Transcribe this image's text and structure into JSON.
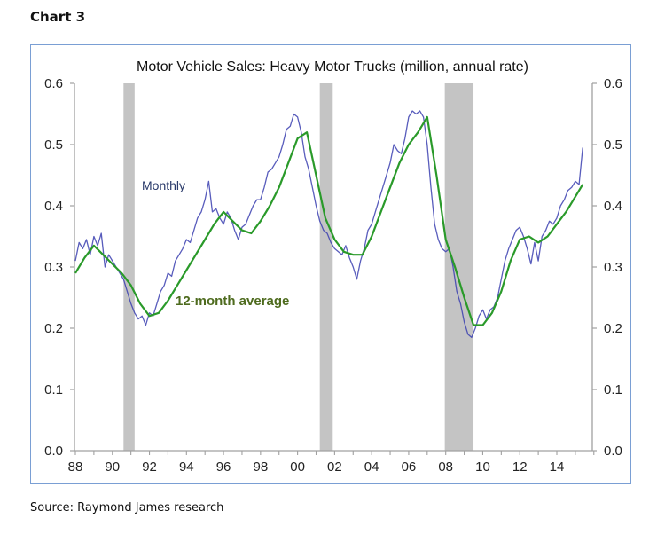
{
  "header": {
    "chart_label": "Chart 3"
  },
  "footer": {
    "source": "Source: Raymond James research"
  },
  "chart_data": {
    "type": "line",
    "title": "Motor Vehicle Sales: Heavy Motor Trucks (million, annual rate)",
    "xlabel": "",
    "ylabel": "",
    "xlim": [
      1988,
      2016
    ],
    "ylim": [
      0.0,
      0.6
    ],
    "x_ticks": [
      "88",
      "90",
      "92",
      "94",
      "96",
      "98",
      "00",
      "02",
      "04",
      "06",
      "08",
      "10",
      "12",
      "14"
    ],
    "y_ticks_left": [
      "0.0",
      "0.1",
      "0.2",
      "0.3",
      "0.4",
      "0.5",
      "0.6"
    ],
    "y_ticks_right": [
      "0.0",
      "0.1",
      "0.2",
      "0.3",
      "0.4",
      "0.5",
      "0.6"
    ],
    "grid": false,
    "recessions": [
      {
        "start": 1990.6,
        "end": 1991.2
      },
      {
        "start": 2001.2,
        "end": 2001.9
      },
      {
        "start": 2007.95,
        "end": 2009.5
      }
    ],
    "annotations": [
      {
        "text": "Monthly",
        "series": "Monthly"
      },
      {
        "text": "12-month average",
        "series": "12-month average"
      }
    ],
    "series": [
      {
        "name": "Monthly",
        "color": "#3b3fb0",
        "x": [
          1988.0,
          1988.2,
          1988.4,
          1988.6,
          1988.8,
          1989.0,
          1989.2,
          1989.4,
          1989.6,
          1989.8,
          1990.0,
          1990.2,
          1990.4,
          1990.6,
          1990.8,
          1991.0,
          1991.2,
          1991.4,
          1991.6,
          1991.8,
          1992.0,
          1992.2,
          1992.4,
          1992.6,
          1992.8,
          1993.0,
          1993.2,
          1993.4,
          1993.6,
          1993.8,
          1994.0,
          1994.2,
          1994.4,
          1994.6,
          1994.8,
          1995.0,
          1995.2,
          1995.4,
          1995.6,
          1995.8,
          1996.0,
          1996.2,
          1996.4,
          1996.6,
          1996.8,
          1997.0,
          1997.2,
          1997.4,
          1997.6,
          1997.8,
          1998.0,
          1998.2,
          1998.4,
          1998.6,
          1998.8,
          1999.0,
          1999.2,
          1999.4,
          1999.6,
          1999.8,
          2000.0,
          2000.2,
          2000.4,
          2000.6,
          2000.8,
          2001.0,
          2001.2,
          2001.4,
          2001.6,
          2001.8,
          2002.0,
          2002.2,
          2002.4,
          2002.6,
          2002.8,
          2003.0,
          2003.2,
          2003.4,
          2003.6,
          2003.8,
          2004.0,
          2004.2,
          2004.4,
          2004.6,
          2004.8,
          2005.0,
          2005.2,
          2005.4,
          2005.6,
          2005.8,
          2006.0,
          2006.2,
          2006.4,
          2006.6,
          2006.8,
          2007.0,
          2007.2,
          2007.4,
          2007.6,
          2007.8,
          2008.0,
          2008.2,
          2008.4,
          2008.6,
          2008.8,
          2009.0,
          2009.2,
          2009.4,
          2009.6,
          2009.8,
          2010.0,
          2010.2,
          2010.4,
          2010.6,
          2010.8,
          2011.0,
          2011.2,
          2011.4,
          2011.6,
          2011.8,
          2012.0,
          2012.2,
          2012.4,
          2012.6,
          2012.8,
          2013.0,
          2013.2,
          2013.4,
          2013.6,
          2013.8,
          2014.0,
          2014.2,
          2014.4,
          2014.6,
          2014.8,
          2015.0,
          2015.2,
          2015.4
        ],
        "values": [
          0.31,
          0.34,
          0.33,
          0.345,
          0.32,
          0.35,
          0.335,
          0.355,
          0.3,
          0.32,
          0.31,
          0.3,
          0.29,
          0.28,
          0.26,
          0.24,
          0.225,
          0.215,
          0.22,
          0.205,
          0.225,
          0.22,
          0.24,
          0.26,
          0.27,
          0.29,
          0.285,
          0.31,
          0.32,
          0.33,
          0.345,
          0.34,
          0.36,
          0.38,
          0.39,
          0.41,
          0.44,
          0.39,
          0.395,
          0.38,
          0.37,
          0.39,
          0.38,
          0.36,
          0.345,
          0.365,
          0.37,
          0.385,
          0.4,
          0.41,
          0.41,
          0.43,
          0.455,
          0.46,
          0.47,
          0.48,
          0.5,
          0.525,
          0.53,
          0.55,
          0.545,
          0.52,
          0.48,
          0.46,
          0.43,
          0.4,
          0.375,
          0.36,
          0.355,
          0.34,
          0.33,
          0.325,
          0.32,
          0.335,
          0.315,
          0.3,
          0.28,
          0.31,
          0.33,
          0.36,
          0.37,
          0.39,
          0.41,
          0.43,
          0.45,
          0.47,
          0.5,
          0.49,
          0.485,
          0.51,
          0.545,
          0.555,
          0.55,
          0.555,
          0.545,
          0.5,
          0.43,
          0.37,
          0.345,
          0.33,
          0.325,
          0.33,
          0.3,
          0.26,
          0.24,
          0.21,
          0.19,
          0.185,
          0.2,
          0.22,
          0.23,
          0.215,
          0.23,
          0.235,
          0.25,
          0.28,
          0.31,
          0.33,
          0.345,
          0.36,
          0.365,
          0.35,
          0.33,
          0.305,
          0.34,
          0.31,
          0.35,
          0.36,
          0.375,
          0.37,
          0.38,
          0.4,
          0.41,
          0.425,
          0.43,
          0.44,
          0.435,
          0.495
        ]
      },
      {
        "name": "12-month average",
        "color": "#2a9a2a",
        "x": [
          1988.0,
          1988.5,
          1989.0,
          1989.5,
          1990.0,
          1990.5,
          1991.0,
          1991.5,
          1992.0,
          1992.5,
          1993.0,
          1993.5,
          1994.0,
          1994.5,
          1995.0,
          1995.5,
          1996.0,
          1996.5,
          1997.0,
          1997.5,
          1998.0,
          1998.5,
          1999.0,
          1999.5,
          2000.0,
          2000.5,
          2001.0,
          2001.5,
          2002.0,
          2002.5,
          2003.0,
          2003.5,
          2004.0,
          2004.5,
          2005.0,
          2005.5,
          2006.0,
          2006.5,
          2007.0,
          2007.5,
          2008.0,
          2008.5,
          2009.0,
          2009.5,
          2010.0,
          2010.5,
          2011.0,
          2011.5,
          2012.0,
          2012.5,
          2013.0,
          2013.5,
          2014.0,
          2014.5,
          2015.0,
          2015.4
        ],
        "values": [
          0.29,
          0.315,
          0.335,
          0.32,
          0.305,
          0.29,
          0.27,
          0.24,
          0.22,
          0.225,
          0.245,
          0.27,
          0.295,
          0.32,
          0.345,
          0.37,
          0.39,
          0.375,
          0.36,
          0.355,
          0.375,
          0.4,
          0.43,
          0.47,
          0.51,
          0.52,
          0.45,
          0.38,
          0.345,
          0.325,
          0.32,
          0.32,
          0.35,
          0.39,
          0.43,
          0.47,
          0.5,
          0.52,
          0.545,
          0.45,
          0.345,
          0.3,
          0.25,
          0.205,
          0.205,
          0.225,
          0.26,
          0.31,
          0.345,
          0.35,
          0.34,
          0.35,
          0.37,
          0.39,
          0.415,
          0.435
        ]
      }
    ]
  }
}
